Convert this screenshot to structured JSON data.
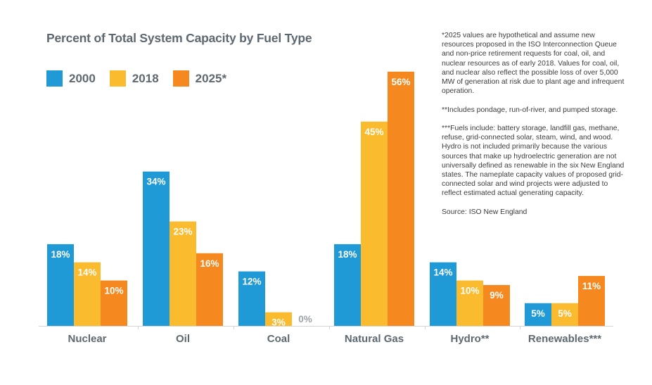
{
  "chart_data": {
    "type": "bar",
    "title": "Percent of Total System Capacity by Fuel Type",
    "xlabel": "",
    "ylabel": "",
    "ylim": [
      0,
      56
    ],
    "grid": false,
    "legend_position": "top-left",
    "categories": [
      "Nuclear",
      "Oil",
      "Coal",
      "Natural Gas",
      "Hydro**",
      "Renewables***"
    ],
    "series": [
      {
        "name": "2000",
        "color": "#1f9ad6",
        "values": [
          18,
          34,
          12,
          18,
          14,
          5
        ],
        "labels": [
          "18%",
          "34%",
          "12%",
          "18%",
          "14%",
          "5%"
        ]
      },
      {
        "name": "2018",
        "color": "#fbbb2f",
        "values": [
          14,
          23,
          3,
          45,
          10,
          5
        ],
        "labels": [
          "14%",
          "23%",
          "3%",
          "45%",
          "10%",
          "5%"
        ]
      },
      {
        "name": "2025*",
        "color": "#f5891f",
        "values": [
          10,
          16,
          0,
          56,
          9,
          11
        ],
        "labels": [
          "10%",
          "16%",
          "0%",
          "56%",
          "9%",
          "11%"
        ]
      }
    ]
  },
  "notes": {
    "note1": "*2025 values are hypothetical and assume new resources proposed in the ISO Interconnection Queue and non-price retirement requests for coal, oil, and nuclear resources as of early 2018. Values for coal, oil, and nuclear also reflect the possible loss of over 5,000 MW of generation at risk due to plant age and infrequent operation.",
    "note2": "**Includes pondage, run-of-river, and pumped storage.",
    "note3": "***Fuels include: battery storage, landfill gas, methane, refuse, grid-connected solar, steam, wind, and wood. Hydro is not included primarily because the various sources that make up hydroelectric generation are not universally defined as renewable in the six New England states. The nameplate capacity values of proposed grid-connected solar and wind projects were adjusted to reflect estimated actual generating capacity.",
    "source": "Source: ISO New England"
  }
}
